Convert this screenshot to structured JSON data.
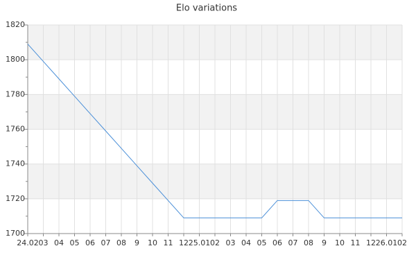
{
  "chart_data": {
    "type": "line",
    "title": "Elo variations",
    "categories": [
      "24.02",
      "03",
      "04",
      "05",
      "06",
      "07",
      "08",
      "9",
      "10",
      "11",
      "12",
      "25.01",
      "02",
      "03",
      "04",
      "05",
      "06",
      "07",
      "08",
      "9",
      "10",
      "11",
      "12",
      "26.01",
      "02"
    ],
    "series": [
      {
        "name": "Elo",
        "color": "#4a8fd8",
        "values": [
          1809,
          1799,
          1789,
          1779,
          1769,
          1759,
          1749,
          1739,
          1729,
          1719,
          1709,
          1709,
          1709,
          1709,
          1709,
          1709,
          1719,
          1719,
          1719,
          1709,
          1709,
          1709,
          1709,
          1709,
          1709
        ]
      }
    ],
    "ylim": [
      1700,
      1820
    ],
    "yticks": [
      1700,
      1720,
      1740,
      1760,
      1780,
      1800,
      1820
    ],
    "grid": true
  }
}
